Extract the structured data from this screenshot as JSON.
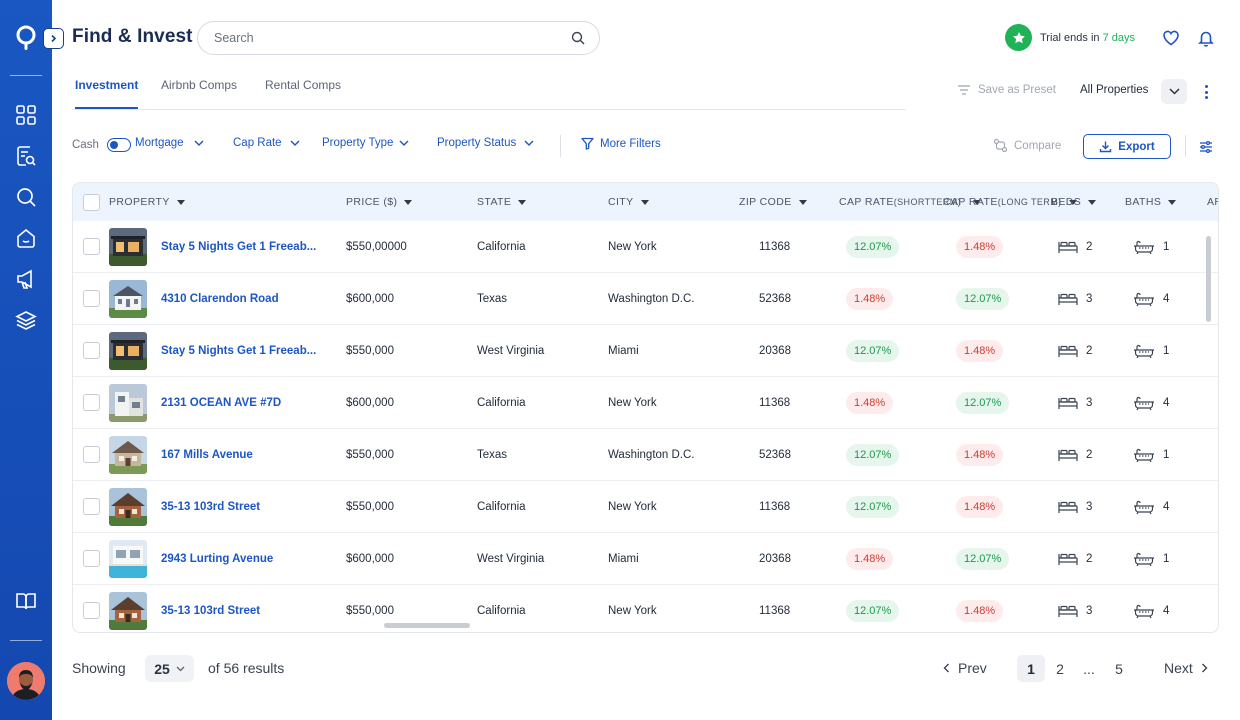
{
  "app": {
    "title": "Find & Invest",
    "brand_color": "#1a57c2"
  },
  "search": {
    "placeholder": "Search"
  },
  "trial": {
    "prefix": "Trial ends in",
    "days": "7 days"
  },
  "sidebar": {
    "icons": [
      "grid-icon",
      "document-search-icon",
      "search-icon",
      "home-icon",
      "megaphone-icon",
      "layers-icon",
      "book-icon"
    ]
  },
  "tabs": [
    {
      "label": "Investment",
      "active": true
    },
    {
      "label": "Airbnb Comps",
      "active": false
    },
    {
      "label": "Rental Comps",
      "active": false
    }
  ],
  "toolbar": {
    "save_preset": "Save as Preset",
    "all_properties": "All Properties",
    "compare": "Compare",
    "export": "Export"
  },
  "filters": {
    "cash": "Cash",
    "mortgage": "Mortgage",
    "cap_rate": "Cap Rate",
    "property_type": "Property Type",
    "property_status": "Property Status",
    "more_filters": "More Filters"
  },
  "columns": {
    "property": "PROPERTY",
    "price": "PRICE ($)",
    "state": "STATE",
    "city": "CITY",
    "zip": "ZIP CODE",
    "cap_short_1": "CAP RATE",
    "cap_short_2": "(SHORT",
    "cap_short_3": "TERM)",
    "cap_long_1": "CAP RATE",
    "cap_long_2": "(LONG TERM)",
    "beds": "BEDS",
    "baths": "BATHS",
    "extra": "AR"
  },
  "rows": [
    {
      "name": "Stay 5 Nights Get 1 Freeab...",
      "price": "$550,00000",
      "state": "California",
      "city": "New York",
      "zip": "11368",
      "cap_short": "12.07%",
      "cap_short_status": "green",
      "cap_long": "1.48%",
      "cap_long_status": "red",
      "beds": "2",
      "baths": "1",
      "thumb": "modern-dark"
    },
    {
      "name": "4310 Clarendon Road",
      "price": "$600,000",
      "state": "Texas",
      "city": "Washington D.C.",
      "zip": "52368",
      "cap_short": "1.48%",
      "cap_short_status": "red",
      "cap_long": "12.07%",
      "cap_long_status": "green",
      "beds": "3",
      "baths": "4",
      "thumb": "colonial-white"
    },
    {
      "name": "Stay 5 Nights Get 1 Freeab...",
      "price": "$550,000",
      "state": "West Virginia",
      "city": "Miami",
      "zip": "20368",
      "cap_short": "12.07%",
      "cap_short_status": "green",
      "cap_long": "1.48%",
      "cap_long_status": "red",
      "beds": "2",
      "baths": "1",
      "thumb": "modern-dark"
    },
    {
      "name": "2131 OCEAN AVE #7D",
      "price": "$600,000",
      "state": "California",
      "city": "New York",
      "zip": "11368",
      "cap_short": "1.48%",
      "cap_short_status": "red",
      "cap_long": "12.07%",
      "cap_long_status": "green",
      "beds": "3",
      "baths": "4",
      "thumb": "modern-white"
    },
    {
      "name": "167 Mills Avenue",
      "price": "$550,000",
      "state": "Texas",
      "city": "Washington D.C.",
      "zip": "52368",
      "cap_short": "12.07%",
      "cap_short_status": "green",
      "cap_long": "1.48%",
      "cap_long_status": "red",
      "beds": "2",
      "baths": "1",
      "thumb": "stone-house"
    },
    {
      "name": "35-13 103rd Street",
      "price": "$550,000",
      "state": "California",
      "city": "New York",
      "zip": "11368",
      "cap_short": "12.07%",
      "cap_short_status": "green",
      "cap_long": "1.48%",
      "cap_long_status": "red",
      "beds": "3",
      "baths": "4",
      "thumb": "brick-house"
    },
    {
      "name": "2943 Lurting Avenue",
      "price": "$600,000",
      "state": "West Virginia",
      "city": "Miami",
      "zip": "20368",
      "cap_short": "1.48%",
      "cap_short_status": "red",
      "cap_long": "12.07%",
      "cap_long_status": "green",
      "beds": "2",
      "baths": "1",
      "thumb": "pool-villa"
    },
    {
      "name": "35-13 103rd Street",
      "price": "$550,000",
      "state": "California",
      "city": "New York",
      "zip": "11368",
      "cap_short": "12.07%",
      "cap_short_status": "green",
      "cap_long": "1.48%",
      "cap_long_status": "red",
      "beds": "3",
      "baths": "4",
      "thumb": "brick-house"
    }
  ],
  "footer": {
    "showing": "Showing",
    "page_size": "25",
    "results": "of 56 results",
    "prev": "Prev",
    "next": "Next",
    "pages": [
      "1",
      "2",
      "...",
      "5"
    ],
    "current_page": "1"
  },
  "colors": {
    "green_text": "#1a9a4a",
    "green_bg": "#e6f6ec",
    "red_text": "#d23b32",
    "red_bg": "#fdeceb"
  }
}
